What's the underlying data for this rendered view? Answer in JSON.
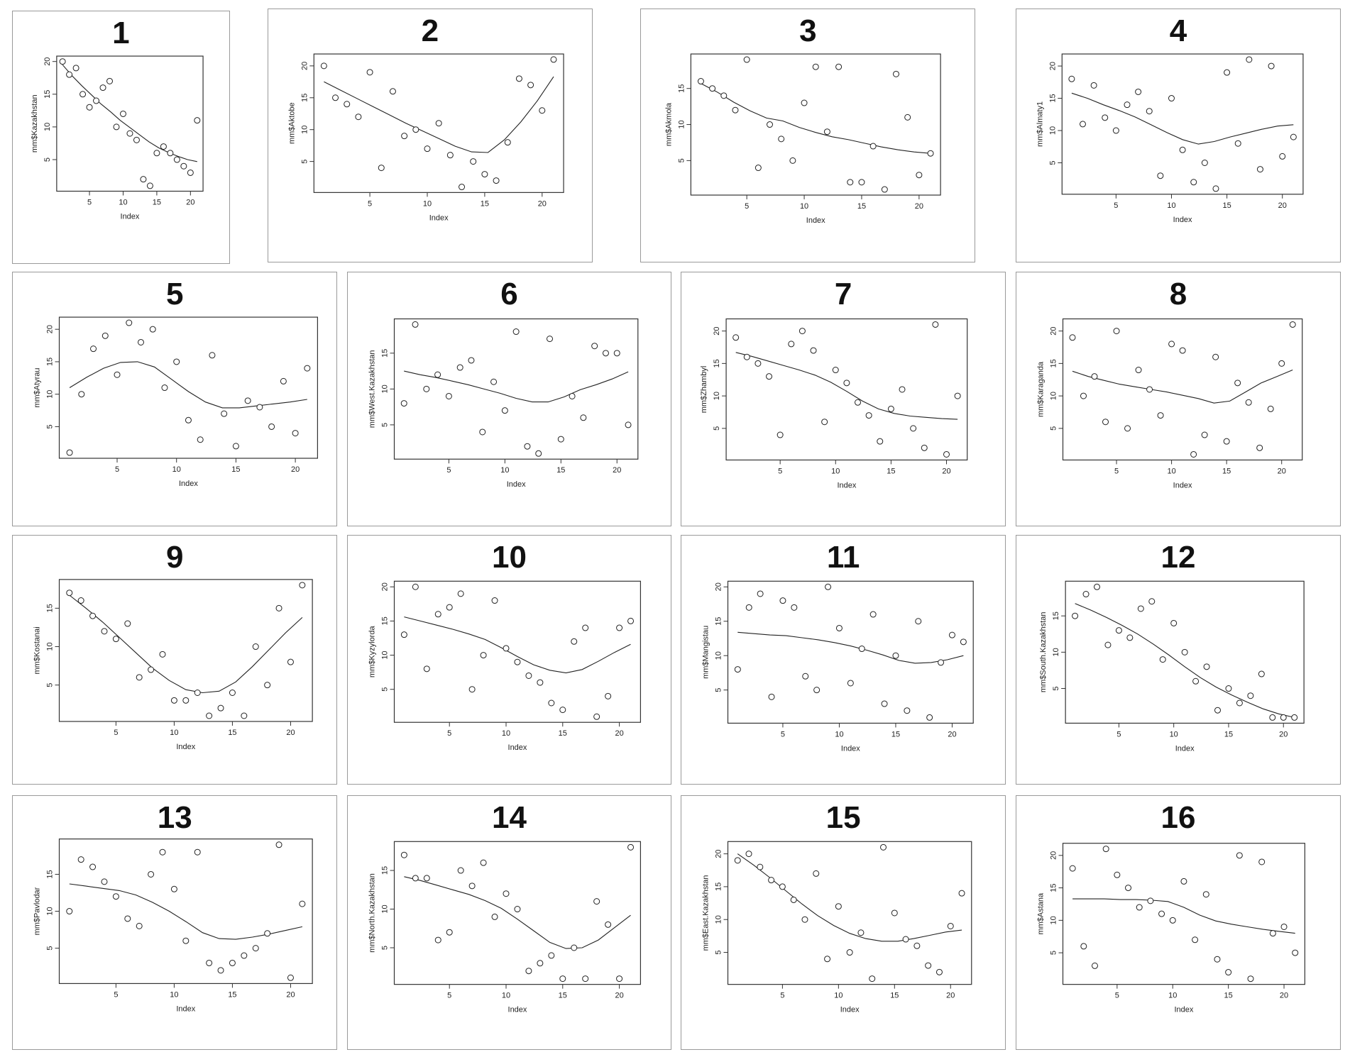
{
  "chart_data": [
    {
      "type": "scatter",
      "panel_label": "1",
      "xlabel": "Index",
      "ylabel": "mm$Kazakhstan",
      "xlim": [
        1,
        21
      ],
      "ylim": [
        1,
        20
      ],
      "xticks": [
        5,
        10,
        15,
        20
      ],
      "yticks": [
        5,
        10,
        15,
        20
      ],
      "x": [
        1,
        2,
        3,
        4,
        5,
        6,
        7,
        8,
        9,
        10,
        11,
        12,
        13,
        14,
        15,
        16,
        17,
        18,
        19,
        20,
        21
      ],
      "y": [
        20,
        18,
        19,
        15,
        13,
        14,
        16,
        17,
        10,
        12,
        9,
        8,
        2,
        1,
        6,
        7,
        6,
        5,
        4,
        3,
        11
      ],
      "smooth": [
        19.5,
        17.8,
        16.3,
        14.9,
        13.5,
        12.3,
        11,
        9.9,
        8.8,
        7.7,
        6.8,
        6.1,
        5.5,
        5,
        4.7
      ]
    },
    {
      "type": "scatter",
      "panel_label": "2",
      "xlabel": "Index",
      "ylabel": "mm$Aktobe",
      "xlim": [
        1,
        21
      ],
      "ylim": [
        1,
        21
      ],
      "xticks": [
        5,
        10,
        15,
        20
      ],
      "yticks": [
        5,
        10,
        15,
        20
      ],
      "x": [
        1,
        2,
        3,
        4,
        5,
        6,
        7,
        8,
        9,
        10,
        11,
        12,
        13,
        14,
        15,
        16,
        17,
        18,
        19,
        20,
        21
      ],
      "y": [
        20,
        15,
        14,
        12,
        19,
        4,
        16,
        9,
        10,
        7,
        11,
        6,
        1,
        5,
        3,
        2,
        8,
        18,
        17,
        13,
        21
      ],
      "smooth": [
        17.5,
        16.2,
        14.9,
        13.6,
        12.3,
        11,
        9.8,
        8.6,
        7.4,
        6.5,
        6.4,
        8.4,
        11.2,
        14.5,
        18.3
      ]
    },
    {
      "type": "scatter",
      "panel_label": "3",
      "xlabel": "Index",
      "ylabel": "mm$Akmola",
      "xlim": [
        1,
        21
      ],
      "ylim": [
        1,
        19
      ],
      "xticks": [
        5,
        10,
        15,
        20
      ],
      "yticks": [
        5,
        10,
        15
      ],
      "x": [
        1,
        2,
        3,
        4,
        5,
        6,
        7,
        8,
        9,
        10,
        11,
        12,
        13,
        14,
        15,
        16,
        17,
        18,
        19,
        20,
        21
      ],
      "y": [
        16,
        15,
        14,
        12,
        19,
        4,
        10,
        8,
        5,
        13,
        18,
        9,
        18,
        2,
        2,
        7,
        1,
        17,
        11,
        3,
        6
      ],
      "smooth": [
        15.7,
        14.5,
        13.1,
        11.9,
        10.9,
        10.5,
        9.6,
        8.9,
        8.3,
        7.9,
        7.4,
        6.9,
        6.5,
        6.2,
        6
      ]
    },
    {
      "type": "scatter",
      "panel_label": "4",
      "xlabel": "Index",
      "ylabel": "mm$Almaty1",
      "xlim": [
        1,
        21
      ],
      "ylim": [
        1,
        21
      ],
      "xticks": [
        5,
        10,
        15,
        20
      ],
      "yticks": [
        5,
        10,
        15,
        20
      ],
      "x": [
        1,
        2,
        3,
        4,
        5,
        6,
        7,
        8,
        9,
        10,
        11,
        12,
        13,
        14,
        15,
        16,
        17,
        18,
        19,
        20,
        21
      ],
      "y": [
        18,
        11,
        17,
        12,
        10,
        14,
        16,
        13,
        3,
        15,
        7,
        2,
        5,
        1,
        19,
        8,
        21,
        4,
        20,
        6,
        9
      ],
      "smooth": [
        15.8,
        15,
        14,
        13.1,
        12.1,
        10.9,
        9.7,
        8.6,
        7.9,
        8.3,
        9,
        9.6,
        10.2,
        10.7,
        10.9
      ]
    },
    {
      "type": "scatter",
      "panel_label": "5",
      "xlabel": "Index",
      "ylabel": "mm$Atyrau",
      "xlim": [
        1,
        21
      ],
      "ylim": [
        1,
        21
      ],
      "xticks": [
        5,
        10,
        15,
        20
      ],
      "yticks": [
        5,
        10,
        15,
        20
      ],
      "x": [
        1,
        2,
        3,
        4,
        5,
        6,
        7,
        8,
        9,
        10,
        11,
        12,
        13,
        14,
        15,
        16,
        17,
        18,
        19,
        20,
        21
      ],
      "y": [
        1,
        10,
        17,
        19,
        13,
        21,
        18,
        20,
        11,
        15,
        6,
        3,
        16,
        7,
        2,
        9,
        8,
        5,
        12,
        4,
        14
      ],
      "smooth": [
        11,
        12.6,
        14,
        14.9,
        15,
        14.2,
        12.3,
        10.4,
        8.8,
        7.9,
        7.9,
        8.2,
        8.5,
        8.8,
        9.2
      ]
    },
    {
      "type": "scatter",
      "panel_label": "6",
      "xlabel": "Index",
      "ylabel": "mm$West.Kazakhstan",
      "xlim": [
        1,
        21
      ],
      "ylim": [
        1,
        19
      ],
      "xticks": [
        5,
        10,
        15,
        20
      ],
      "yticks": [
        5,
        10,
        15
      ],
      "x": [
        1,
        2,
        3,
        4,
        5,
        6,
        7,
        8,
        9,
        10,
        11,
        12,
        13,
        14,
        15,
        16,
        17,
        18,
        19,
        20,
        21
      ],
      "y": [
        8,
        19,
        10,
        12,
        9,
        13,
        14,
        4,
        11,
        7,
        18,
        2,
        1,
        17,
        3,
        9,
        6,
        16,
        15,
        15,
        5
      ],
      "smooth": [
        12.5,
        12,
        11.6,
        11.1,
        10.6,
        10,
        9.4,
        8.7,
        8.2,
        8.2,
        8.9,
        9.9,
        10.6,
        11.4,
        12.4
      ]
    },
    {
      "type": "scatter",
      "panel_label": "7",
      "xlabel": "Index",
      "ylabel": "mm$Zhambyl",
      "xlim": [
        1,
        21
      ],
      "ylim": [
        1,
        21
      ],
      "xticks": [
        5,
        10,
        15,
        20
      ],
      "yticks": [
        5,
        10,
        15,
        20
      ],
      "x": [
        1,
        2,
        3,
        4,
        5,
        6,
        7,
        8,
        9,
        10,
        11,
        12,
        13,
        14,
        15,
        16,
        17,
        18,
        19,
        20,
        21
      ],
      "y": [
        19,
        16,
        15,
        13,
        4,
        18,
        20,
        17,
        6,
        14,
        12,
        9,
        7,
        3,
        8,
        11,
        5,
        2,
        21,
        1,
        10
      ],
      "smooth": [
        16.7,
        16.1,
        15.4,
        14.7,
        14,
        13.2,
        12.1,
        10.7,
        9.2,
        8,
        7.3,
        6.9,
        6.7,
        6.5,
        6.4
      ]
    },
    {
      "type": "scatter",
      "panel_label": "8",
      "xlabel": "Index",
      "ylabel": "mm$Karaganda",
      "xlim": [
        1,
        21
      ],
      "ylim": [
        1,
        21
      ],
      "xticks": [
        5,
        10,
        15,
        20
      ],
      "yticks": [
        5,
        10,
        15,
        20
      ],
      "x": [
        1,
        2,
        3,
        4,
        5,
        6,
        7,
        8,
        9,
        10,
        11,
        12,
        13,
        14,
        15,
        16,
        17,
        18,
        19,
        20,
        21
      ],
      "y": [
        19,
        10,
        13,
        6,
        20,
        5,
        14,
        11,
        7,
        18,
        17,
        1,
        4,
        16,
        3,
        12,
        9,
        2,
        8,
        15,
        21
      ],
      "smooth": [
        13.8,
        13,
        12.4,
        11.8,
        11.4,
        11,
        10.6,
        10.1,
        9.6,
        8.9,
        9.2,
        10.6,
        12,
        13,
        14
      ]
    },
    {
      "type": "scatter",
      "panel_label": "9",
      "xlabel": "Index",
      "ylabel": "mm$Kostanai",
      "xlim": [
        1,
        21
      ],
      "ylim": [
        1,
        18
      ],
      "xticks": [
        5,
        10,
        15,
        20
      ],
      "yticks": [
        5,
        10,
        15
      ],
      "x": [
        1,
        2,
        3,
        4,
        5,
        6,
        7,
        8,
        9,
        10,
        11,
        12,
        13,
        14,
        15,
        16,
        17,
        18,
        19,
        20,
        21
      ],
      "y": [
        17,
        16,
        14,
        12,
        11,
        13,
        6,
        7,
        9,
        3,
        3,
        4,
        1,
        2,
        4,
        1,
        10,
        5,
        15,
        8,
        18
      ],
      "smooth": [
        16.7,
        15,
        13.2,
        11.2,
        9.2,
        7.2,
        5.6,
        4.4,
        4,
        4.2,
        5.4,
        7.4,
        9.6,
        11.8,
        13.8
      ]
    },
    {
      "type": "scatter",
      "panel_label": "10",
      "xlabel": "Index",
      "ylabel": "mm$Kyzylorda",
      "xlim": [
        1,
        21
      ],
      "ylim": [
        1,
        20
      ],
      "xticks": [
        5,
        10,
        15,
        20
      ],
      "yticks": [
        5,
        10,
        15,
        20
      ],
      "x": [
        1,
        2,
        3,
        4,
        5,
        6,
        7,
        8,
        9,
        10,
        11,
        12,
        13,
        14,
        15,
        16,
        17,
        18,
        19,
        20,
        21
      ],
      "y": [
        13,
        20,
        8,
        16,
        17,
        19,
        5,
        10,
        18,
        11,
        9,
        7,
        6,
        3,
        2,
        12,
        14,
        1,
        4,
        14,
        15
      ],
      "smooth": [
        15.6,
        15,
        14.4,
        13.8,
        13.1,
        12.3,
        11.1,
        9.8,
        8.6,
        7.8,
        7.4,
        7.9,
        9.1,
        10.4,
        11.6
      ]
    },
    {
      "type": "scatter",
      "panel_label": "11",
      "xlabel": "Index",
      "ylabel": "mm$Mangistau",
      "xlim": [
        1,
        21
      ],
      "ylim": [
        1,
        20
      ],
      "xticks": [
        5,
        10,
        15,
        20
      ],
      "yticks": [
        5,
        10,
        15,
        20
      ],
      "x": [
        1,
        2,
        3,
        4,
        5,
        6,
        7,
        8,
        9,
        10,
        11,
        12,
        13,
        14,
        15,
        16,
        17,
        18,
        19,
        20,
        21
      ],
      "y": [
        8,
        17,
        19,
        4,
        18,
        17,
        7,
        5,
        20,
        14,
        6,
        11,
        16,
        3,
        10,
        2,
        15,
        1,
        9,
        13,
        12
      ],
      "smooth": [
        13.4,
        13.2,
        13,
        12.9,
        12.6,
        12.3,
        11.9,
        11.4,
        10.8,
        10.1,
        9.3,
        8.9,
        9,
        9.4,
        10
      ]
    },
    {
      "type": "scatter",
      "panel_label": "12",
      "xlabel": "Index",
      "ylabel": "mm$South.Kazakhstan",
      "xlim": [
        1,
        21
      ],
      "ylim": [
        1,
        19
      ],
      "xticks": [
        5,
        10,
        15,
        20
      ],
      "yticks": [
        5,
        10,
        15
      ],
      "x": [
        1,
        2,
        3,
        4,
        5,
        6,
        7,
        8,
        9,
        10,
        11,
        12,
        13,
        14,
        15,
        16,
        17,
        18,
        19,
        20,
        21
      ],
      "y": [
        15,
        18,
        19,
        11,
        13,
        12,
        16,
        17,
        9,
        14,
        10,
        6,
        8,
        2,
        5,
        3,
        4,
        7,
        1,
        1,
        1
      ],
      "smooth": [
        16.7,
        15.8,
        14.8,
        13.7,
        12.5,
        11.1,
        9.6,
        8,
        6.5,
        5.2,
        4.1,
        3.1,
        2.2,
        1.5,
        1
      ]
    },
    {
      "type": "scatter",
      "panel_label": "13",
      "xlabel": "Index",
      "ylabel": "mm$Pavlodar",
      "xlim": [
        1,
        21
      ],
      "ylim": [
        1,
        19
      ],
      "xticks": [
        5,
        10,
        15,
        20
      ],
      "yticks": [
        5,
        10,
        15
      ],
      "x": [
        1,
        2,
        3,
        4,
        5,
        6,
        7,
        8,
        9,
        10,
        11,
        12,
        13,
        14,
        15,
        16,
        17,
        18,
        19,
        20,
        21
      ],
      "y": [
        10,
        17,
        16,
        14,
        12,
        9,
        8,
        15,
        18,
        13,
        6,
        18,
        3,
        2,
        3,
        4,
        5,
        7,
        19,
        1,
        11
      ],
      "smooth": [
        13.7,
        13.4,
        13.1,
        12.8,
        12.2,
        11.2,
        10,
        8.6,
        7.1,
        6.3,
        6.2,
        6.5,
        6.9,
        7.4,
        7.9
      ]
    },
    {
      "type": "scatter",
      "panel_label": "14",
      "xlabel": "Index",
      "ylabel": "mm$North.Kazakhstan",
      "xlim": [
        1,
        21
      ],
      "ylim": [
        1,
        18
      ],
      "xticks": [
        5,
        10,
        15,
        20
      ],
      "yticks": [
        5,
        10,
        15
      ],
      "x": [
        1,
        2,
        3,
        4,
        5,
        6,
        7,
        8,
        9,
        10,
        11,
        12,
        13,
        14,
        15,
        16,
        17,
        18,
        19,
        20,
        21
      ],
      "y": [
        17,
        14,
        14,
        6,
        7,
        15,
        13,
        16,
        9,
        12,
        10,
        2,
        3,
        4,
        1,
        5,
        1,
        11,
        8,
        1,
        18
      ],
      "smooth": [
        14.2,
        13.7,
        13.1,
        12.5,
        11.9,
        11.1,
        10.1,
        8.7,
        7.2,
        5.7,
        4.9,
        5,
        6,
        7.6,
        9.2
      ]
    },
    {
      "type": "scatter",
      "panel_label": "15",
      "xlabel": "Index",
      "ylabel": "mm$East.Kazakhstan",
      "xlim": [
        1,
        21
      ],
      "ylim": [
        1,
        21
      ],
      "xticks": [
        5,
        10,
        15,
        20
      ],
      "yticks": [
        5,
        10,
        15,
        20
      ],
      "x": [
        1,
        2,
        3,
        4,
        5,
        6,
        7,
        8,
        9,
        10,
        11,
        12,
        13,
        14,
        15,
        16,
        17,
        18,
        19,
        20,
        21
      ],
      "y": [
        19,
        20,
        18,
        16,
        15,
        13,
        10,
        17,
        4,
        12,
        5,
        8,
        1,
        21,
        11,
        7,
        6,
        3,
        2,
        9,
        14
      ],
      "smooth": [
        20,
        18.3,
        16.4,
        14.4,
        12.4,
        10.6,
        9.1,
        7.9,
        7.1,
        6.7,
        6.7,
        7.1,
        7.6,
        8.1,
        8.4
      ]
    },
    {
      "type": "scatter",
      "panel_label": "16",
      "xlabel": "Index",
      "ylabel": "mm$Astana",
      "xlim": [
        1,
        21
      ],
      "ylim": [
        1,
        21
      ],
      "xticks": [
        5,
        10,
        15,
        20
      ],
      "yticks": [
        5,
        10,
        15,
        20
      ],
      "x": [
        1,
        2,
        3,
        4,
        5,
        6,
        7,
        8,
        9,
        10,
        11,
        12,
        13,
        14,
        15,
        16,
        17,
        18,
        19,
        20,
        21
      ],
      "y": [
        18,
        6,
        3,
        21,
        17,
        15,
        12,
        13,
        11,
        10,
        16,
        7,
        14,
        4,
        2,
        20,
        1,
        19,
        8,
        9,
        5
      ],
      "smooth": [
        13.3,
        13.3,
        13.3,
        13.2,
        13.2,
        13.1,
        12.9,
        12,
        10.8,
        9.9,
        9.4,
        9,
        8.6,
        8.3,
        8
      ]
    }
  ]
}
